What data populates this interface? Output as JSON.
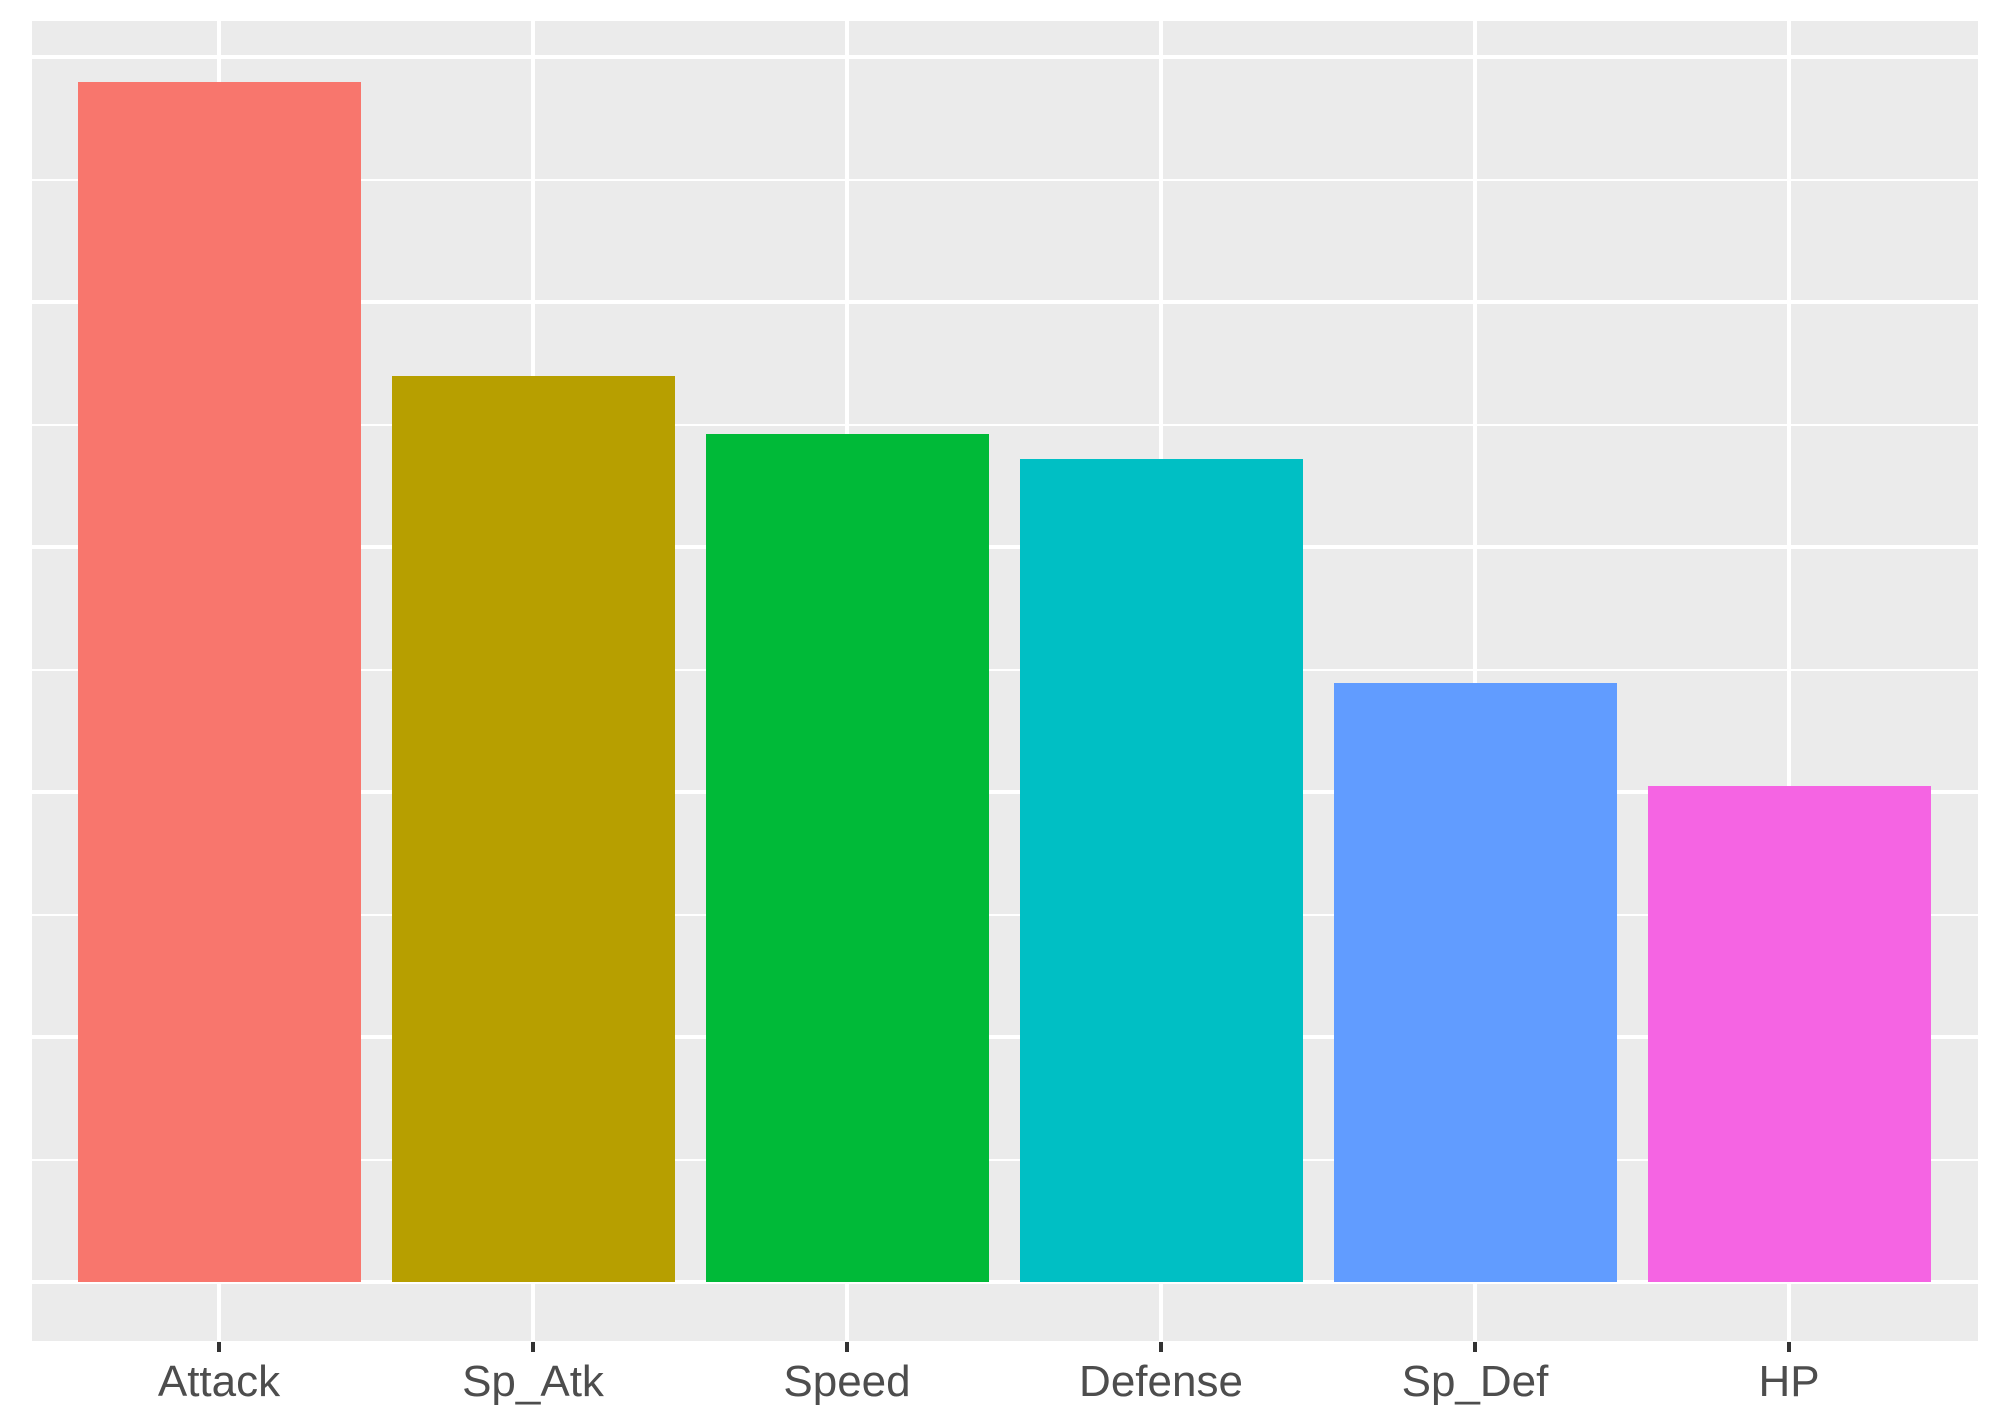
{
  "chart_data": {
    "type": "bar",
    "title": "",
    "xlabel": "",
    "ylabel": "",
    "categories": [
      "Attack",
      "Sp_Atk",
      "Speed",
      "Defense",
      "Sp_Def",
      "HP"
    ],
    "values": [
      98.0,
      74.0,
      69.2,
      67.2,
      48.9,
      40.5
    ],
    "colors": [
      "#F8766D",
      "#B79F00",
      "#00BA38",
      "#00BFC4",
      "#619CFF",
      "#F564E3"
    ],
    "ylim": [
      -4.8,
      103.2
    ],
    "y_tick_labels_visible": false,
    "y_major_step": 20,
    "y_minor_step": 10,
    "grid": true,
    "legend": "none",
    "background": "#EBEBEB",
    "gridline_color": "#FFFFFF",
    "label_color": "#4D4D4D"
  }
}
